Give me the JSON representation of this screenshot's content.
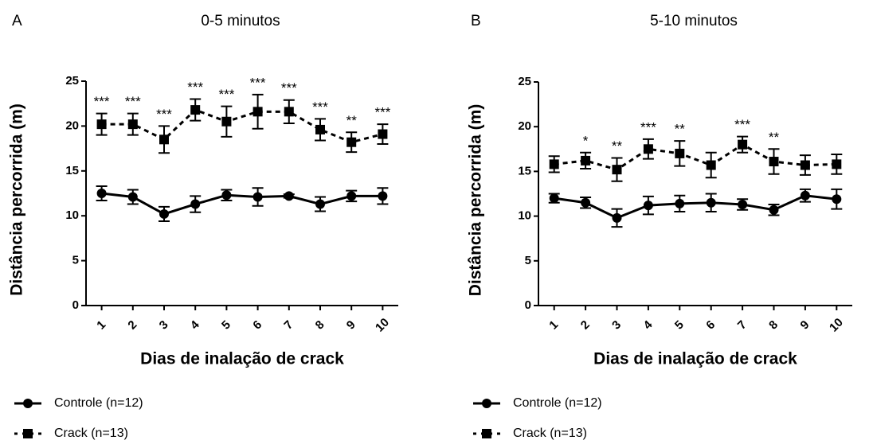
{
  "chart_data": [
    {
      "type": "line",
      "panel_label": "A",
      "title": "0-5 minutos",
      "x_label": "Dias de inalação de crack",
      "y_label": "Distância percorrida (m)",
      "categories": [
        "1",
        "2",
        "3",
        "4",
        "5",
        "6",
        "7",
        "8",
        "9",
        "10"
      ],
      "ylim": [
        0,
        25
      ],
      "yticks": [
        0,
        5,
        10,
        15,
        20,
        25
      ],
      "series": [
        {
          "name": "Controle (n=12)",
          "color": "#000000",
          "linestyle": "solid",
          "marker": "circle",
          "values": [
            12.5,
            12.1,
            10.2,
            11.3,
            12.3,
            12.1,
            12.2,
            11.3,
            12.2,
            12.2
          ],
          "errors": [
            0.8,
            0.8,
            0.8,
            0.9,
            0.6,
            1.0,
            0.2,
            0.8,
            0.6,
            0.9
          ]
        },
        {
          "name": "Crack (n=13)",
          "color": "#000000",
          "linestyle": "dashed",
          "marker": "square",
          "values": [
            20.2,
            20.2,
            18.5,
            21.8,
            20.5,
            21.6,
            21.6,
            19.6,
            18.2,
            19.1
          ],
          "errors": [
            1.2,
            1.2,
            1.5,
            1.2,
            1.7,
            1.9,
            1.3,
            1.2,
            1.1,
            1.1
          ]
        }
      ],
      "significance": [
        "***",
        "***",
        "***",
        "***",
        "***",
        "***",
        "***",
        "***",
        "**",
        "***"
      ]
    },
    {
      "type": "line",
      "panel_label": "B",
      "title": "5-10 minutos",
      "x_label": "Dias de inalação de crack",
      "y_label": "Distância percorrida (m)",
      "categories": [
        "1",
        "2",
        "3",
        "4",
        "5",
        "6",
        "7",
        "8",
        "9",
        "10"
      ],
      "ylim": [
        0,
        25
      ],
      "yticks": [
        0,
        5,
        10,
        15,
        20,
        25
      ],
      "series": [
        {
          "name": "Controle (n=12)",
          "color": "#000000",
          "linestyle": "solid",
          "marker": "circle",
          "values": [
            12.0,
            11.5,
            9.8,
            11.2,
            11.4,
            11.5,
            11.3,
            10.7,
            12.3,
            11.9
          ],
          "errors": [
            0.5,
            0.6,
            1.0,
            1.0,
            0.9,
            1.0,
            0.6,
            0.6,
            0.7,
            1.1
          ]
        },
        {
          "name": "Crack (n=13)",
          "color": "#000000",
          "linestyle": "dashed",
          "marker": "square",
          "values": [
            15.8,
            16.2,
            15.2,
            17.5,
            17.0,
            15.7,
            18.0,
            16.1,
            15.7,
            15.8
          ],
          "errors": [
            0.9,
            0.9,
            1.3,
            1.1,
            1.4,
            1.4,
            0.9,
            1.4,
            1.1,
            1.1
          ]
        }
      ],
      "significance": [
        null,
        "*",
        "**",
        "***",
        "**",
        null,
        "***",
        "**",
        null,
        null
      ]
    }
  ]
}
